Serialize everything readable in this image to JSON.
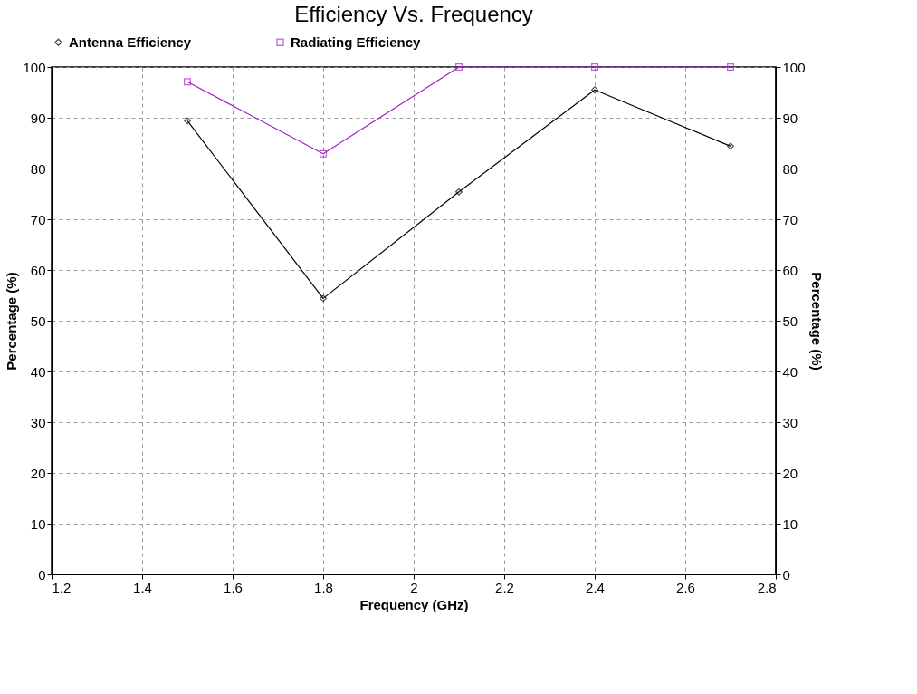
{
  "chart_data": {
    "type": "line",
    "title": "Efficiency Vs. Frequency",
    "xlabel": "Frequency (GHz)",
    "ylabel": "Percentage (%)",
    "y2label": "Percentage (%)",
    "x": [
      1.5,
      1.8,
      2.1,
      2.4,
      2.7
    ],
    "series": [
      {
        "name": "Antenna Efficiency",
        "color": "#000000",
        "marker": "diamond",
        "values": [
          89.4,
          54.4,
          75.4,
          95.5,
          84.4
        ]
      },
      {
        "name": "Radiating Efficiency",
        "color": "#a020c8",
        "marker": "square",
        "values": [
          97.1,
          82.9,
          100,
          100,
          100
        ]
      }
    ],
    "xlim": [
      1.2,
      2.8
    ],
    "xticks": [
      1.2,
      1.4,
      1.6,
      1.8,
      2,
      2.2,
      2.4,
      2.6,
      2.8
    ],
    "ylim": [
      0,
      100
    ],
    "yticks": [
      0,
      10,
      20,
      30,
      40,
      50,
      60,
      70,
      80,
      90,
      100
    ],
    "y2lim": [
      0,
      100
    ],
    "y2ticks": [
      0,
      10,
      20,
      30,
      40,
      50,
      60,
      70,
      80,
      90,
      100
    ],
    "grid": true,
    "legend": "top",
    "line_style": "solid"
  }
}
